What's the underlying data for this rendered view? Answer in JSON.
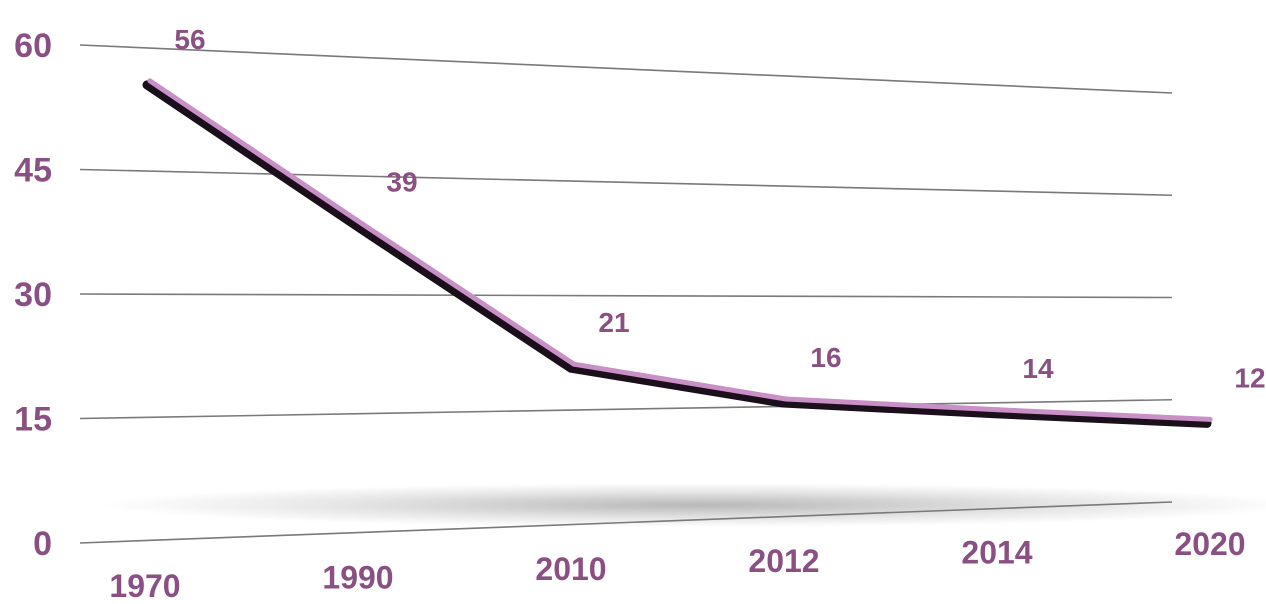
{
  "chart_data": {
    "type": "line",
    "title": "",
    "xlabel": "",
    "ylabel": "",
    "categories": [
      "1970",
      "1990",
      "2010",
      "2012",
      "2014",
      "2020"
    ],
    "series": [
      {
        "values": [
          56,
          39,
          21,
          16,
          14,
          12
        ]
      }
    ],
    "y_ticks": [
      "0",
      "15",
      "30",
      "45",
      "60"
    ],
    "ylim": [
      0,
      60
    ],
    "grid": true,
    "legend": "none",
    "style": "3d perspective",
    "colors": {
      "line": "#c98fc7",
      "line_shadow": "#1a0f1a",
      "labels": "#8a4f83",
      "grid": "#7a7a7a"
    }
  }
}
